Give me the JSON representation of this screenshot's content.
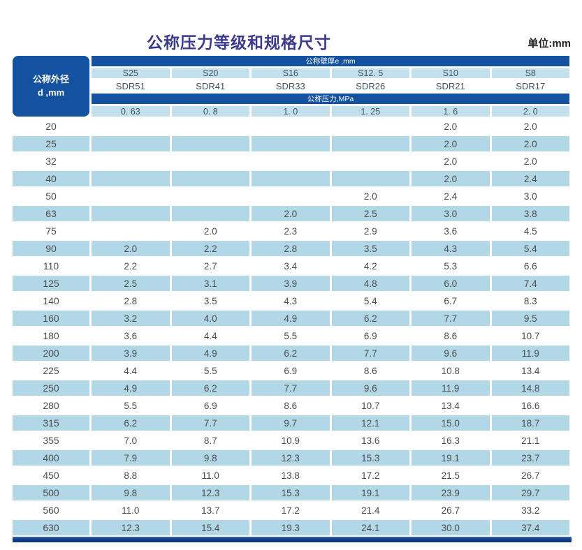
{
  "page": {
    "title": "公称压力等级和规格尺寸",
    "unit_label": "单位:mm"
  },
  "colors": {
    "header_blue": "#14519f",
    "header_light_blue": "#c2e1ec",
    "row_light_blue": "#b2d8e8",
    "title_color": "#3b3a8e",
    "bottom_bar_blue": "#113e8b"
  },
  "table": {
    "corner_header": {
      "line1": "公称外径",
      "line2": "d ,mm"
    },
    "wall_thickness_header": "公称壁厚e ,mm",
    "pressure_header": "公称压力,MPa",
    "s_series": [
      "S25",
      "S20",
      "S16",
      "S12. 5",
      "S10",
      "S8"
    ],
    "sdr_series": [
      "SDR51",
      "SDR41",
      "SDR33",
      "SDR26",
      "SDR21",
      "SDR17"
    ],
    "pressure_values": [
      "0. 63",
      "0. 8",
      "1. 0",
      "1. 25",
      "1. 6",
      "2. 0"
    ],
    "rows": [
      {
        "d": "20",
        "values": [
          "",
          "",
          "",
          "",
          "2.0",
          "2.0"
        ]
      },
      {
        "d": "25",
        "values": [
          "",
          "",
          "",
          "",
          "2.0",
          "2.0"
        ]
      },
      {
        "d": "32",
        "values": [
          "",
          "",
          "",
          "",
          "2.0",
          "2.0"
        ]
      },
      {
        "d": "40",
        "values": [
          "",
          "",
          "",
          "",
          "2.0",
          "2.4"
        ]
      },
      {
        "d": "50",
        "values": [
          "",
          "",
          "",
          "2.0",
          "2.4",
          "3.0"
        ]
      },
      {
        "d": "63",
        "values": [
          "",
          "",
          "2.0",
          "2.5",
          "3.0",
          "3.8"
        ]
      },
      {
        "d": "75",
        "values": [
          "",
          "2.0",
          "2.3",
          "2.9",
          "3.6",
          "4.5"
        ]
      },
      {
        "d": "90",
        "values": [
          "2.0",
          "2.2",
          "2.8",
          "3.5",
          "4.3",
          "5.4"
        ]
      },
      {
        "d": "110",
        "values": [
          "2.2",
          "2.7",
          "3.4",
          "4.2",
          "5.3",
          "6.6"
        ]
      },
      {
        "d": "125",
        "values": [
          "2.5",
          "3.1",
          "3.9",
          "4.8",
          "6.0",
          "7.4"
        ]
      },
      {
        "d": "140",
        "values": [
          "2.8",
          "3.5",
          "4.3",
          "5.4",
          "6.7",
          "8.3"
        ]
      },
      {
        "d": "160",
        "values": [
          "3.2",
          "4.0",
          "4.9",
          "6.2",
          "7.7",
          "9.5"
        ]
      },
      {
        "d": "180",
        "values": [
          "3.6",
          "4.4",
          "5.5",
          "6.9",
          "8.6",
          "10.7"
        ]
      },
      {
        "d": "200",
        "values": [
          "3.9",
          "4.9",
          "6.2",
          "7.7",
          "9.6",
          "11.9"
        ]
      },
      {
        "d": "225",
        "values": [
          "4.4",
          "5.5",
          "6.9",
          "8.6",
          "10.8",
          "13.4"
        ]
      },
      {
        "d": "250",
        "values": [
          "4.9",
          "6.2",
          "7.7",
          "9.6",
          "11.9",
          "14.8"
        ]
      },
      {
        "d": "280",
        "values": [
          "5.5",
          "6.9",
          "8.6",
          "10.7",
          "13.4",
          "16.6"
        ]
      },
      {
        "d": "315",
        "values": [
          "6.2",
          "7.7",
          "9.7",
          "12.1",
          "15.0",
          "18.7"
        ]
      },
      {
        "d": "355",
        "values": [
          "7.0",
          "8.7",
          "10.9",
          "13.6",
          "16.3",
          "21.1"
        ]
      },
      {
        "d": "400",
        "values": [
          "7.9",
          "9.8",
          "12.3",
          "15.3",
          "19.1",
          "23.7"
        ]
      },
      {
        "d": "450",
        "values": [
          "8.8",
          "11.0",
          "13.8",
          "17.2",
          "21.5",
          "26.7"
        ]
      },
      {
        "d": "500",
        "values": [
          "9.8",
          "12.3",
          "15.3",
          "19.1",
          "23.9",
          "29.7"
        ]
      },
      {
        "d": "560",
        "values": [
          "11.0",
          "13.7",
          "17.2",
          "21.4",
          "26.7",
          "33.2"
        ]
      },
      {
        "d": "630",
        "values": [
          "12.3",
          "15.4",
          "19.3",
          "24.1",
          "30.0",
          "37.4"
        ]
      }
    ]
  }
}
